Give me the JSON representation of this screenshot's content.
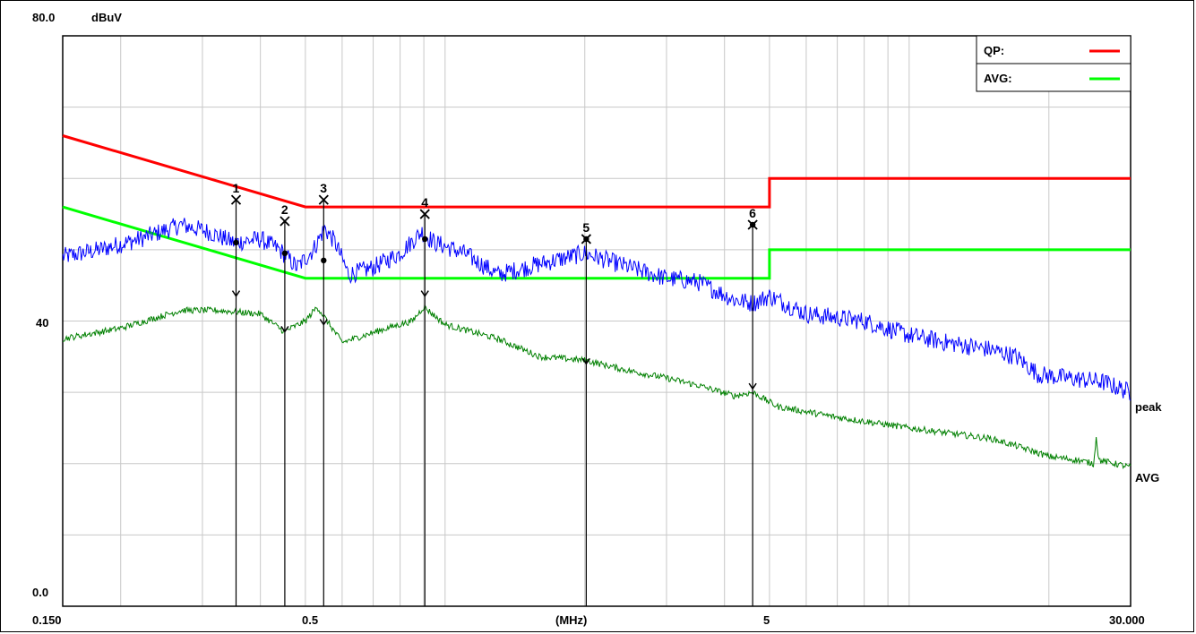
{
  "chart_data": {
    "type": "line",
    "y_unit": "dBuV",
    "x_unit": "(MHz)",
    "x_scale": "log",
    "xlim": [
      0.15,
      30
    ],
    "ylim": [
      0,
      80
    ],
    "y_tick_labels": [
      "0.0",
      "40",
      "80.0"
    ],
    "x_tick_labels": [
      "0.150",
      "0.5",
      "(MHz)",
      "5",
      "30.000"
    ],
    "grid": true,
    "legend": {
      "placement": "top-right",
      "entries": [
        {
          "label": "QP:",
          "color": "#ff0000"
        },
        {
          "label": "AVG:",
          "color": "#00ff00"
        }
      ]
    },
    "series": [
      {
        "name": "QP:",
        "color": "#ff0000",
        "points": [
          [
            0.15,
            66
          ],
          [
            0.5,
            56
          ],
          [
            5,
            56
          ],
          [
            5,
            60
          ],
          [
            30,
            60
          ]
        ]
      },
      {
        "name": "AVG:",
        "color": "#00ff00",
        "points": [
          [
            0.15,
            56
          ],
          [
            0.5,
            46
          ],
          [
            5,
            46
          ],
          [
            5,
            50
          ],
          [
            30,
            50
          ]
        ]
      },
      {
        "name": "peak",
        "color": "#0000ff",
        "points": [
          [
            0.15,
            49
          ],
          [
            0.18,
            50
          ],
          [
            0.22,
            51.5
          ],
          [
            0.27,
            53.5
          ],
          [
            0.31,
            52.5
          ],
          [
            0.35,
            51
          ],
          [
            0.4,
            51.5
          ],
          [
            0.44,
            50
          ],
          [
            0.48,
            47.5
          ],
          [
            0.52,
            50
          ],
          [
            0.55,
            53
          ],
          [
            0.58,
            51
          ],
          [
            0.62,
            46.5
          ],
          [
            0.7,
            47.5
          ],
          [
            0.8,
            49.5
          ],
          [
            0.89,
            52.5
          ],
          [
            0.95,
            51
          ],
          [
            1.1,
            49.5
          ],
          [
            1.3,
            46.5
          ],
          [
            1.6,
            48
          ],
          [
            2,
            49.5
          ],
          [
            2.5,
            47.5
          ],
          [
            3,
            46
          ],
          [
            3.5,
            45.5
          ],
          [
            4.2,
            43
          ],
          [
            4.6,
            42.5
          ],
          [
            5,
            43.5
          ],
          [
            6,
            41
          ],
          [
            8,
            40
          ],
          [
            10,
            38
          ],
          [
            12,
            37
          ],
          [
            15,
            36
          ],
          [
            17,
            35
          ],
          [
            19,
            32.5
          ],
          [
            22,
            32
          ],
          [
            26,
            31.5
          ],
          [
            30,
            30
          ]
        ]
      },
      {
        "name": "AVG",
        "color": "#008000",
        "points": [
          [
            0.15,
            37.5
          ],
          [
            0.2,
            39
          ],
          [
            0.27,
            41.5
          ],
          [
            0.32,
            41.5
          ],
          [
            0.4,
            41
          ],
          [
            0.45,
            38.5
          ],
          [
            0.5,
            40
          ],
          [
            0.53,
            42
          ],
          [
            0.6,
            37
          ],
          [
            0.75,
            39
          ],
          [
            0.85,
            40
          ],
          [
            0.9,
            42
          ],
          [
            1,
            39.5
          ],
          [
            1.3,
            37.5
          ],
          [
            1.6,
            35
          ],
          [
            2,
            34.5
          ],
          [
            2.5,
            33
          ],
          [
            3,
            32
          ],
          [
            3.5,
            31
          ],
          [
            4.2,
            29.5
          ],
          [
            4.6,
            30
          ],
          [
            5.2,
            28
          ],
          [
            7,
            26.5
          ],
          [
            10,
            25
          ],
          [
            15,
            23.5
          ],
          [
            17,
            22.5
          ],
          [
            20,
            21
          ],
          [
            23,
            20.5
          ],
          [
            25,
            20
          ],
          [
            25.3,
            24
          ],
          [
            25.6,
            20.5
          ],
          [
            30,
            19.5
          ]
        ]
      }
    ],
    "markers": [
      {
        "label": "1",
        "freq": 0.3545,
        "peak": 57,
        "qp": 51,
        "avg": 43.5
      },
      {
        "label": "2",
        "freq": 0.4515,
        "peak": 54,
        "qp": 49.5,
        "avg": 38.5
      },
      {
        "label": "3",
        "freq": 0.5475,
        "peak": 57,
        "qp": 48.5,
        "avg": 39.5
      },
      {
        "label": "4",
        "freq": 0.9045,
        "peak": 55,
        "qp": 51.5,
        "avg": 43.5
      },
      {
        "label": "5",
        "freq": 2.0145,
        "peak": 51.5,
        "qp": 51.5,
        "avg": 34
      },
      {
        "label": "6",
        "freq": 4.6,
        "peak": 53.5,
        "qp": 53.5,
        "avg": 30.5
      }
    ],
    "trace_labels": [
      {
        "text": "peak",
        "color": "#000000"
      },
      {
        "text": "AVG",
        "color": "#008000"
      }
    ]
  }
}
